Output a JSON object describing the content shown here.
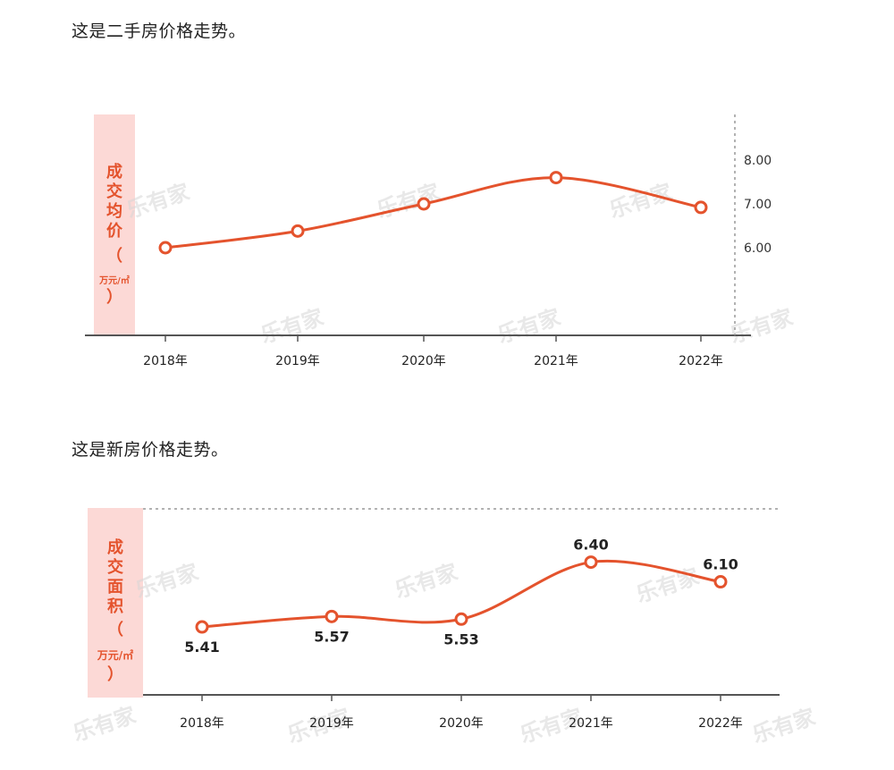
{
  "captions": {
    "second_hand": "这是二手房价格走势。",
    "new_house": "这是新房价格走势。"
  },
  "watermark": "乐有家",
  "colors": {
    "line": "#e4532d",
    "label_bg": "#fcd9d6",
    "axis": "#555555",
    "dashed": "#999999"
  },
  "chart_data": [
    {
      "type": "line",
      "categories": [
        "2018年",
        "2019年",
        "2020年",
        "2021年",
        "2022年"
      ],
      "values": [
        6.0,
        6.38,
        7.0,
        7.6,
        6.92
      ],
      "ylabel": "成交均价（万元/㎡）",
      "ylabel_main": "成交均价",
      "ylabel_open": "（",
      "ylabel_unit": "万元/㎡",
      "ylabel_close": "）",
      "y_ticks": [
        "6.00",
        "7.00",
        "8.00"
      ],
      "ylim": [
        4.0,
        9.0
      ],
      "smooth": true,
      "axis_side": "right"
    },
    {
      "type": "line",
      "categories": [
        "2018年",
        "2019年",
        "2020年",
        "2021年",
        "2022年"
      ],
      "values": [
        5.41,
        5.57,
        5.53,
        6.4,
        6.1
      ],
      "data_labels": [
        "5.41",
        "5.57",
        "5.53",
        "6.40",
        "6.10"
      ],
      "ylabel": "成交面积（万元/㎡）",
      "ylabel_main": "成交面积",
      "ylabel_open": "（",
      "ylabel_unit": "万元/㎡",
      "ylabel_close": "）",
      "ylim": [
        4.4,
        7.2
      ]
    }
  ]
}
